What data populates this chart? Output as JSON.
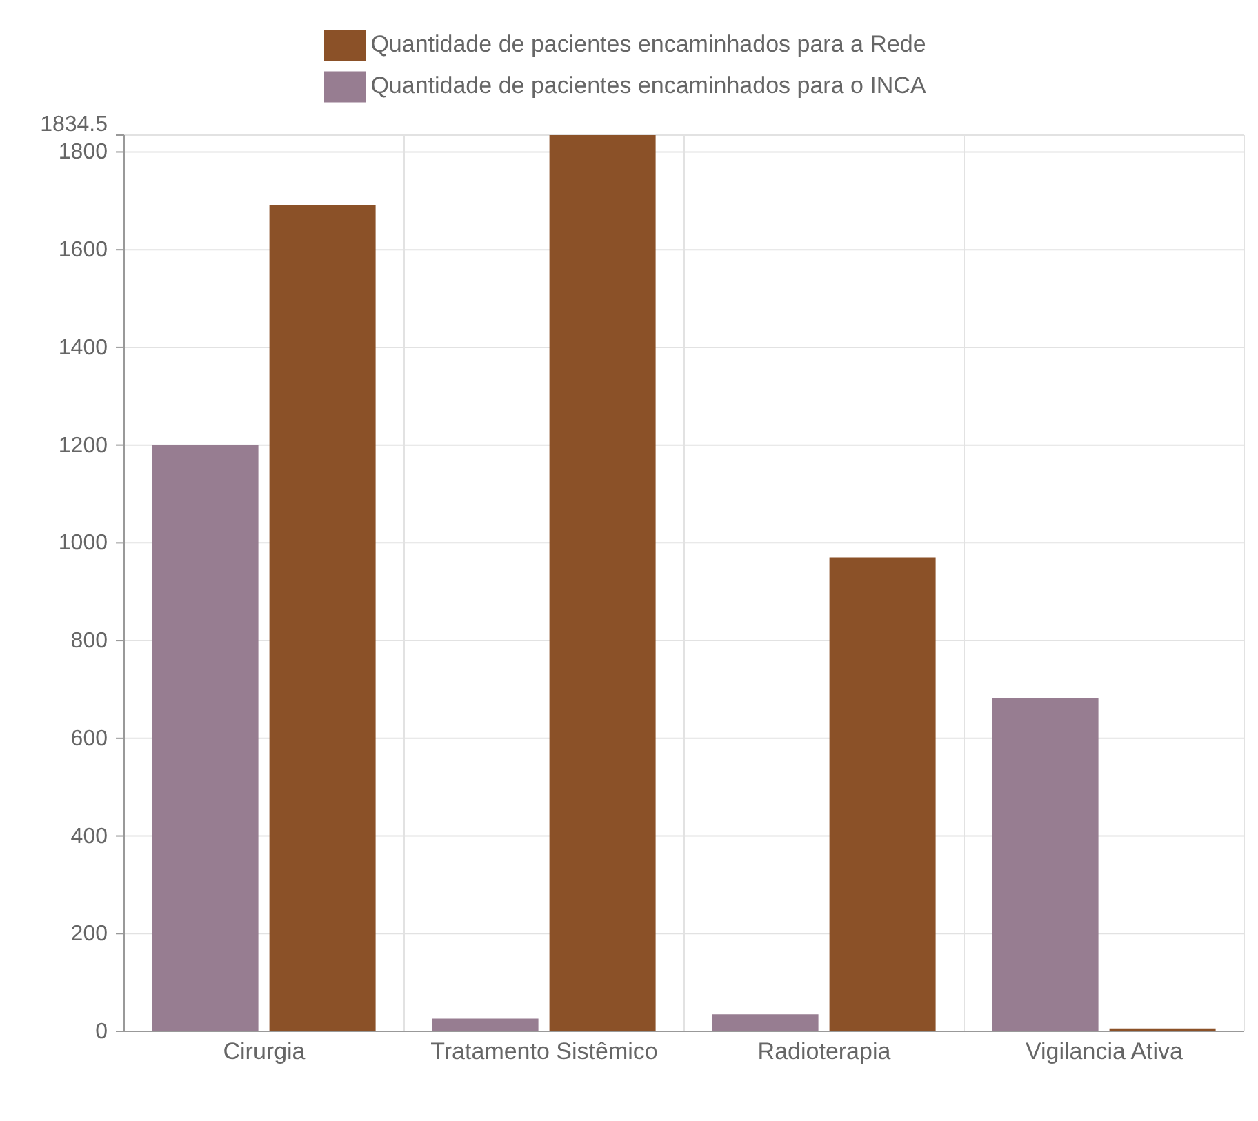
{
  "chart_data": {
    "type": "bar",
    "categories": [
      "Cirurgia",
      "Tratamento Sistêmico",
      "Radioterapia",
      "Vigilancia Ativa"
    ],
    "series": [
      {
        "name": "Quantidade de pacientes encaminhados para o INCA",
        "color": "#977d91",
        "values": [
          1200,
          26,
          35,
          683
        ]
      },
      {
        "name": "Quantidade de pacientes encaminhados para a Rede",
        "color": "#8b5128",
        "values": [
          1692,
          1834.5,
          970,
          6
        ]
      }
    ],
    "ylim": [
      0,
      1834.5
    ],
    "yticks": [
      0,
      200,
      400,
      600,
      800,
      1000,
      1200,
      1400,
      1600,
      1800,
      1834.5
    ],
    "grid": true,
    "legend": "top"
  }
}
